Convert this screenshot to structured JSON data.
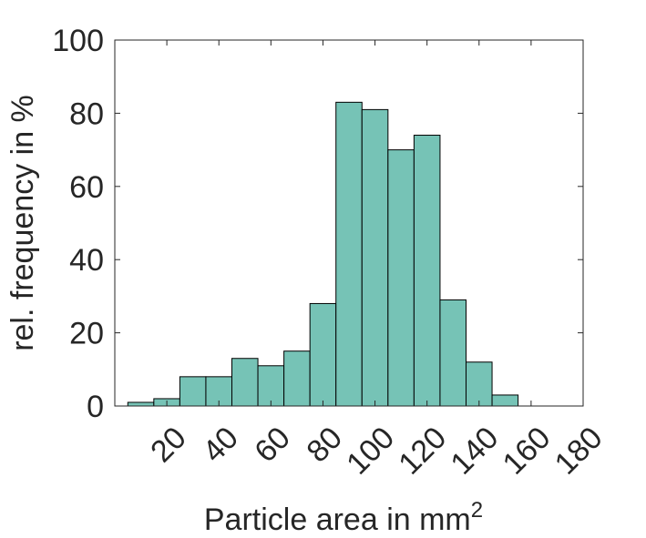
{
  "chart_data": {
    "type": "bar",
    "subtype": "histogram",
    "bin_width": 10,
    "bins": [
      {
        "x0": 5,
        "x1": 15,
        "value": 1
      },
      {
        "x0": 15,
        "x1": 25,
        "value": 2
      },
      {
        "x0": 25,
        "x1": 35,
        "value": 8
      },
      {
        "x0": 35,
        "x1": 45,
        "value": 8
      },
      {
        "x0": 45,
        "x1": 55,
        "value": 13
      },
      {
        "x0": 55,
        "x1": 65,
        "value": 11
      },
      {
        "x0": 65,
        "x1": 75,
        "value": 15
      },
      {
        "x0": 75,
        "x1": 85,
        "value": 28
      },
      {
        "x0": 85,
        "x1": 95,
        "value": 83
      },
      {
        "x0": 95,
        "x1": 105,
        "value": 81
      },
      {
        "x0": 105,
        "x1": 115,
        "value": 70
      },
      {
        "x0": 115,
        "x1": 125,
        "value": 74
      },
      {
        "x0": 125,
        "x1": 135,
        "value": 29
      },
      {
        "x0": 135,
        "x1": 145,
        "value": 12
      },
      {
        "x0": 145,
        "x1": 155,
        "value": 3
      }
    ],
    "xlim": [
      0,
      180
    ],
    "ylim": [
      0,
      100
    ],
    "xticks": [
      20,
      40,
      60,
      80,
      100,
      120,
      140,
      160,
      180
    ],
    "xtick_labels": [
      "20",
      "40",
      "60",
      "80",
      "100",
      "120",
      "140",
      "160",
      "180"
    ],
    "yticks": [
      0,
      20,
      40,
      60,
      80,
      100
    ],
    "ytick_labels": [
      "0",
      "20",
      "40",
      "60",
      "80",
      "100"
    ],
    "xlabel": "Particle area in mm",
    "xlabel_superscript": "2",
    "ylabel": "rel. frequency in %",
    "title": "",
    "grid": false,
    "bar_color": "#76c3b6",
    "bar_edge_color": "#000000"
  }
}
